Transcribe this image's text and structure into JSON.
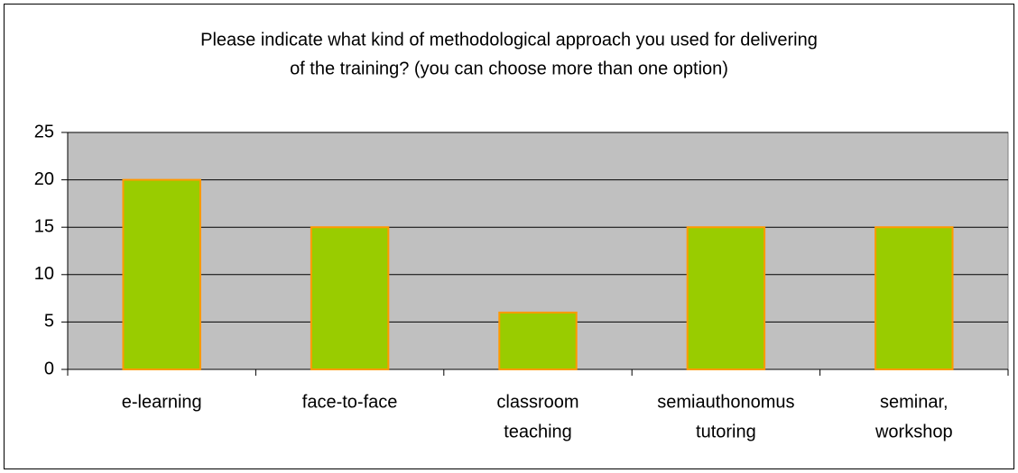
{
  "chart_data": {
    "type": "bar",
    "title": [
      "Please indicate what kind of methodological approach you used for delivering",
      "of the training? (you can choose more than one option)"
    ],
    "categories": [
      [
        "e-learning"
      ],
      [
        "face-to-face"
      ],
      [
        "classroom",
        "teaching"
      ],
      [
        "semiauthonomus",
        "tutoring"
      ],
      [
        "seminar,",
        "workshop"
      ]
    ],
    "values": [
      20,
      15,
      6,
      15,
      15
    ],
    "color": "#99cc00",
    "edge_color": "#ff9900",
    "plot_background": "#c0c0c0",
    "ylim": [
      0,
      25
    ],
    "yticks": [
      0,
      5,
      10,
      15,
      20,
      25
    ],
    "grid": true
  }
}
